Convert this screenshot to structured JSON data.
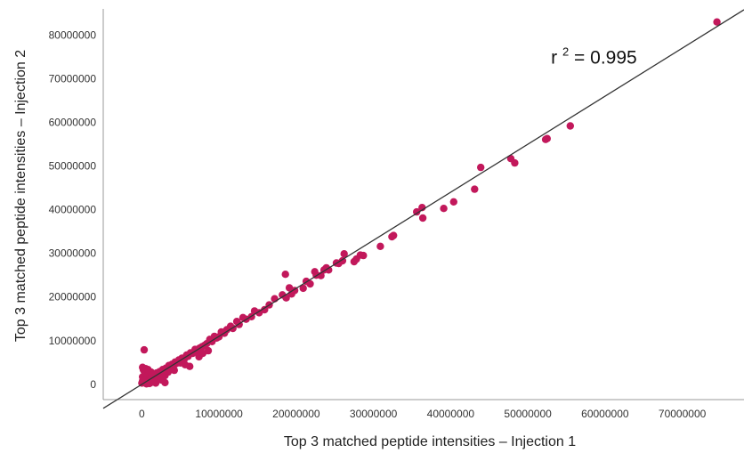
{
  "chart_data": {
    "type": "scatter",
    "title": "",
    "xlabel": "Top 3 matched peptide intensities – Injection 1",
    "ylabel": "Top 3 matched peptide intensities – Injection 2",
    "xlim": [
      -5000000,
      78000000
    ],
    "ylim": [
      -3500000,
      86000000
    ],
    "x_ticks": [
      0,
      10000000,
      20000000,
      30000000,
      40000000,
      50000000,
      60000000,
      70000000
    ],
    "x_tick_labels": [
      "0",
      "10000000",
      "20000000",
      "30000000",
      "40000000",
      "50000000",
      "60000000",
      "70000000"
    ],
    "y_ticks": [
      0,
      10000000,
      20000000,
      30000000,
      40000000,
      50000000,
      60000000,
      70000000,
      80000000
    ],
    "y_tick_labels": [
      "0",
      "10000000",
      "20000000",
      "30000000",
      "40000000",
      "50000000",
      "60000000",
      "70000000",
      "80000000"
    ],
    "grid": false,
    "legend": "none",
    "colors": {
      "points": "#c2185b",
      "fit_line": "#333333",
      "axis": "#999999"
    },
    "fit_line": {
      "slope": 1.1,
      "intercept": 0,
      "x_range": [
        -5000000,
        78000000
      ]
    },
    "annotation": {
      "base": "r",
      "superscript": "2",
      "rest": " = 0.995",
      "x": 53000000,
      "y": 73500000
    },
    "points": [
      [
        74500000,
        83000000
      ],
      [
        55500000,
        59200000
      ],
      [
        52500000,
        56300000
      ],
      [
        52300000,
        56100000
      ],
      [
        48300000,
        50700000
      ],
      [
        47800000,
        51700000
      ],
      [
        43900000,
        49700000
      ],
      [
        43100000,
        44700000
      ],
      [
        40400000,
        41800000
      ],
      [
        39100000,
        40300000
      ],
      [
        36300000,
        40500000
      ],
      [
        36400000,
        38100000
      ],
      [
        35600000,
        39500000
      ],
      [
        32600000,
        34100000
      ],
      [
        32400000,
        33800000
      ],
      [
        30900000,
        31600000
      ],
      [
        28700000,
        29500000
      ],
      [
        28300000,
        29600000
      ],
      [
        27800000,
        28700000
      ],
      [
        27500000,
        28100000
      ],
      [
        26200000,
        29900000
      ],
      [
        26000000,
        28300000
      ],
      [
        25500000,
        27700000
      ],
      [
        25200000,
        27800000
      ],
      [
        24200000,
        26200000
      ],
      [
        23900000,
        26700000
      ],
      [
        23600000,
        26200000
      ],
      [
        23200000,
        24900000
      ],
      [
        22600000,
        25000000
      ],
      [
        22400000,
        25800000
      ],
      [
        21800000,
        23000000
      ],
      [
        21300000,
        23600000
      ],
      [
        20900000,
        22000000
      ],
      [
        19800000,
        21500000
      ],
      [
        19400000,
        20700000
      ],
      [
        19100000,
        22100000
      ],
      [
        18700000,
        19800000
      ],
      [
        18200000,
        20500000
      ],
      [
        17200000,
        19600000
      ],
      [
        18600000,
        25200000
      ],
      [
        16500000,
        18200000
      ],
      [
        15900000,
        17100000
      ],
      [
        15200000,
        16400000
      ],
      [
        14600000,
        16800000
      ],
      [
        14200000,
        15500000
      ],
      [
        13500000,
        14900000
      ],
      [
        13100000,
        15300000
      ],
      [
        12600000,
        13700000
      ],
      [
        12300000,
        14400000
      ],
      [
        11800000,
        12800000
      ],
      [
        11500000,
        13300000
      ],
      [
        11000000,
        12500000
      ],
      [
        10700000,
        11700000
      ],
      [
        10300000,
        12000000
      ],
      [
        10000000,
        10900000
      ],
      [
        9700000,
        10600000
      ],
      [
        9400000,
        11000000
      ],
      [
        9100000,
        9800000
      ],
      [
        8800000,
        10300000
      ],
      [
        8400000,
        9300000
      ],
      [
        8100000,
        8900000
      ],
      [
        7800000,
        8600000
      ],
      [
        7500000,
        8300000
      ],
      [
        7200000,
        7600000
      ],
      [
        6900000,
        8000000
      ],
      [
        6600000,
        7100000
      ],
      [
        6300000,
        7200000
      ],
      [
        6000000,
        6400000
      ],
      [
        5800000,
        6700000
      ],
      [
        5500000,
        5800000
      ],
      [
        5200000,
        6000000
      ],
      [
        5000000,
        4900000
      ],
      [
        4800000,
        5600000
      ],
      [
        4500000,
        4800000
      ],
      [
        4300000,
        5100000
      ],
      [
        4100000,
        4200000
      ],
      [
        3900000,
        4600000
      ],
      [
        3700000,
        3900000
      ],
      [
        3500000,
        4300000
      ],
      [
        3300000,
        3500000
      ],
      [
        3100000,
        3700000
      ],
      [
        2900000,
        3000000
      ],
      [
        2700000,
        3400000
      ],
      [
        2500000,
        2600000
      ],
      [
        2300000,
        2900000
      ],
      [
        2100000,
        2100000
      ],
      [
        1900000,
        2600000
      ],
      [
        1700000,
        1800000
      ],
      [
        1500000,
        2200000
      ],
      [
        1300000,
        1400000
      ],
      [
        1100000,
        1900000
      ],
      [
        900000,
        1000000
      ],
      [
        700000,
        1500000
      ],
      [
        500000,
        600000
      ],
      [
        300000,
        1100000
      ],
      [
        200000,
        400000
      ],
      [
        100000,
        800000
      ],
      [
        0,
        300000
      ],
      [
        100000,
        1700000
      ],
      [
        400000,
        2500000
      ],
      [
        200000,
        3300000
      ],
      [
        100000,
        3900000
      ],
      [
        500000,
        3600000
      ],
      [
        300000,
        7900000
      ],
      [
        1200000,
        2800000
      ],
      [
        800000,
        3400000
      ],
      [
        1000000,
        200000
      ],
      [
        600000,
        100000
      ],
      [
        1600000,
        900000
      ],
      [
        2000000,
        1200000
      ],
      [
        2400000,
        1600000
      ],
      [
        2800000,
        2400000
      ],
      [
        1800000,
        300000
      ],
      [
        3000000,
        2000000
      ],
      [
        3400000,
        2800000
      ],
      [
        6200000,
        4100000
      ],
      [
        4200000,
        3200000
      ],
      [
        5600000,
        4500000
      ],
      [
        7400000,
        6300000
      ],
      [
        7900000,
        7100000
      ],
      [
        8600000,
        7700000
      ],
      [
        3000000,
        400000
      ],
      [
        2500000,
        1000000
      ],
      [
        1400000,
        500000
      ]
    ]
  }
}
